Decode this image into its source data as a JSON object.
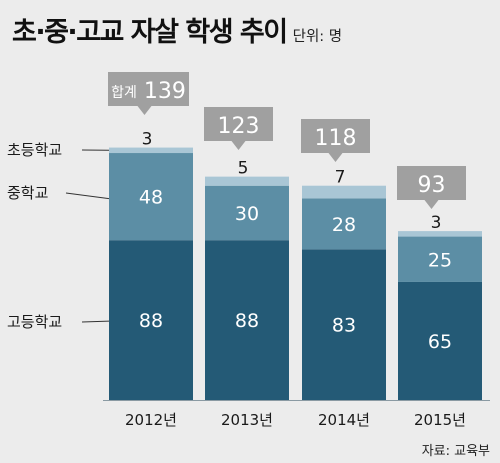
{
  "header": {
    "title": "초·중·고교 자살 학생 추이",
    "unit": "단위: 명"
  },
  "source": "자료: 교육부",
  "colors": {
    "background": "#ececec",
    "고등학교": "#245a76",
    "중학교": "#5c8ea5",
    "초등학교": "#a9c6d5",
    "total_callout": "#a0a0a0"
  },
  "chart_data": {
    "type": "bar",
    "stacked": true,
    "categories": [
      "2012년",
      "2013년",
      "2014년",
      "2015년"
    ],
    "series": [
      {
        "name": "고등학교",
        "values": [
          88,
          88,
          83,
          65
        ]
      },
      {
        "name": "중학교",
        "values": [
          48,
          30,
          28,
          25
        ]
      },
      {
        "name": "초등학교",
        "values": [
          3,
          5,
          7,
          3
        ]
      }
    ],
    "totals": [
      139,
      123,
      118,
      93
    ],
    "total_prefix": "합계",
    "ylim": [
      0,
      140
    ],
    "legend": "left, labels with leader lines"
  }
}
